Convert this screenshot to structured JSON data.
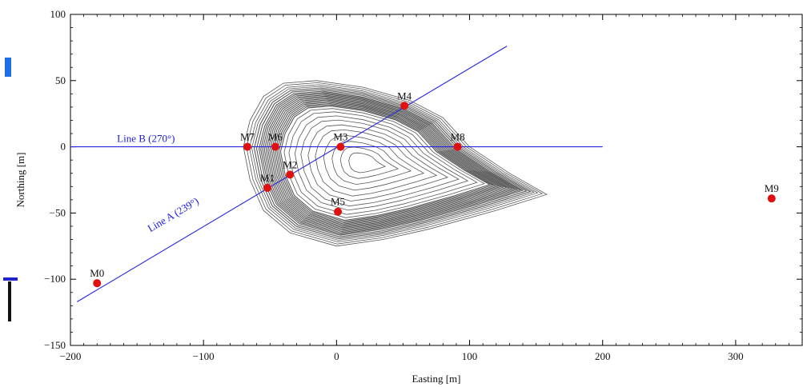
{
  "chart_data": {
    "type": "scatter",
    "title": "",
    "xlabel": "Easting [m]",
    "ylabel": "Northing [m]",
    "xlim": [
      -200,
      350
    ],
    "ylim": [
      -150,
      100
    ],
    "xticks": [
      -200,
      -100,
      0,
      100,
      200,
      300
    ],
    "yticks": [
      -150,
      -100,
      -50,
      0,
      50,
      100
    ],
    "grid": false,
    "points": [
      {
        "label": "M0",
        "x": -180,
        "y": -103
      },
      {
        "label": "M1",
        "x": -52,
        "y": -31
      },
      {
        "label": "M2",
        "x": -35,
        "y": -21
      },
      {
        "label": "M3",
        "x": 3,
        "y": 0
      },
      {
        "label": "M4",
        "x": 51,
        "y": 31
      },
      {
        "label": "M5",
        "x": 1,
        "y": -49
      },
      {
        "label": "M6",
        "x": -46,
        "y": 0
      },
      {
        "label": "M7",
        "x": -67,
        "y": 0
      },
      {
        "label": "M8",
        "x": 91,
        "y": 0
      },
      {
        "label": "M9",
        "x": 327,
        "y": -39
      }
    ],
    "lines": [
      {
        "label": "Line A (239°)",
        "x": [
          -195,
          128
        ],
        "y": [
          -117,
          76
        ]
      },
      {
        "label": "Line B (270°)",
        "x": [
          -200,
          200
        ],
        "y": [
          0,
          0
        ]
      }
    ],
    "point_color": "#e01010",
    "line_color": "#2424e0",
    "contour_color": "#3a3a3a"
  }
}
